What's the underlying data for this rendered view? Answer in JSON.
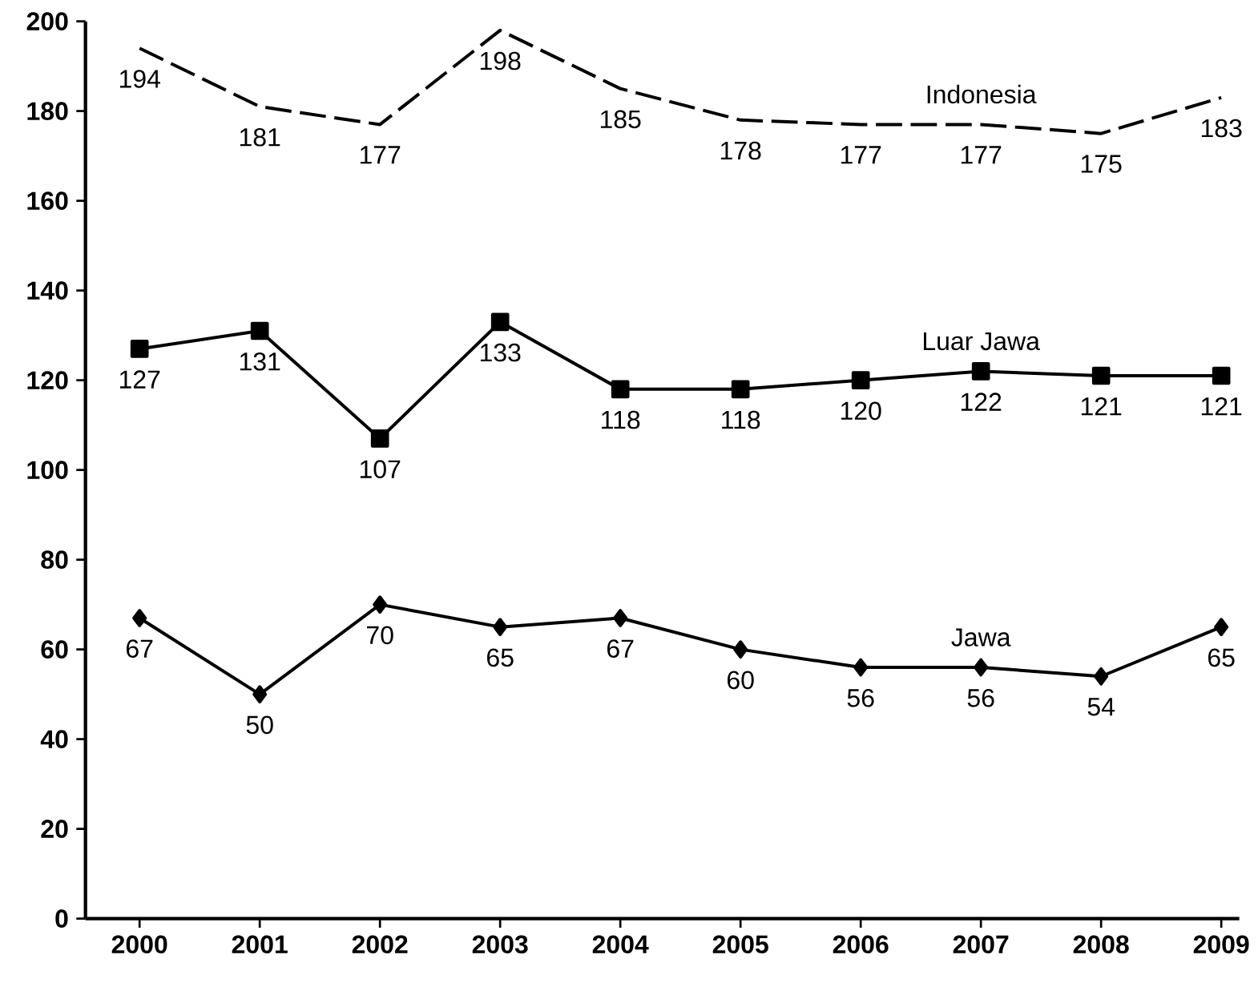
{
  "chart_data": {
    "type": "line",
    "categories": [
      "2000",
      "2001",
      "2002",
      "2003",
      "2004",
      "2005",
      "2006",
      "2007",
      "2008",
      "2009"
    ],
    "series": [
      {
        "name": "Indonesia",
        "color": "#000000",
        "values": [
          194,
          181,
          177,
          198,
          185,
          178,
          177,
          177,
          175,
          183
        ],
        "line_style": "dashed",
        "marker": "none"
      },
      {
        "name": "Luar Jawa",
        "color": "#000000",
        "values": [
          127,
          131,
          107,
          133,
          118,
          118,
          120,
          122,
          121,
          121
        ],
        "line_style": "solid",
        "marker": "square"
      },
      {
        "name": "Jawa",
        "color": "#000000",
        "values": [
          67,
          50,
          70,
          65,
          67,
          60,
          56,
          56,
          54,
          65
        ],
        "line_style": "solid",
        "marker": "diamond"
      }
    ],
    "ylim": [
      0,
      200
    ],
    "yticks": [
      0,
      20,
      40,
      60,
      80,
      100,
      120,
      140,
      160,
      180,
      200
    ],
    "data_labels": true,
    "grid": false
  }
}
